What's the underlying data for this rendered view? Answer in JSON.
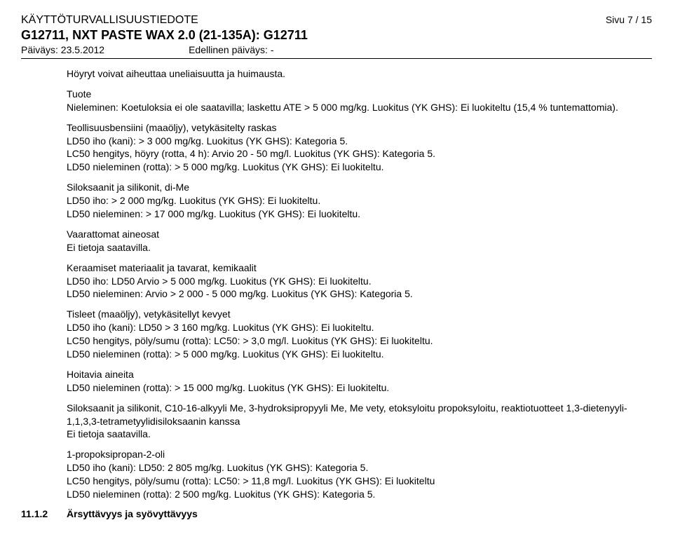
{
  "header": {
    "doc_type": "KÄYTTÖTURVALLISUUSTIEDOTE",
    "product_code": "G12711, NXT PASTE WAX 2.0 (21-135A): G12711",
    "date_label": "Päiväys: 23.5.2012",
    "prev_date_label": "Edellinen päiväys: -",
    "page_label": "Sivu 7 / 15"
  },
  "intro": {
    "line1": "Höyryt voivat aiheuttaa uneliaisuutta ja huimausta."
  },
  "tuote": {
    "title": "Tuote",
    "line1": "Nieleminen: Koetuloksia ei ole saatavilla; laskettu ATE > 5 000 mg/kg. Luokitus (YK GHS): Ei luokiteltu (15,4 % tuntemattomia)."
  },
  "teollisuus": {
    "title": "Teollisuusbensiini (maaöljy), vetykäsitelty raskas",
    "l1": "LD50 iho (kani): > 3 000 mg/kg. Luokitus (YK GHS): Kategoria 5.",
    "l2": "LC50 hengitys, höyry (rotta, 4 h): Arvio 20 - 50 mg/l. Luokitus (YK GHS): Kategoria 5.",
    "l3": "LD50 nieleminen (rotta): > 5 000 mg/kg. Luokitus (YK GHS): Ei luokiteltu."
  },
  "siloksaanit_dime": {
    "title": "Siloksaanit ja silikonit, di-Me",
    "l1": "LD50 iho: > 2 000 mg/kg. Luokitus (YK GHS): Ei luokiteltu.",
    "l2": "LD50 nieleminen: > 17 000 mg/kg. Luokitus (YK GHS): Ei luokiteltu."
  },
  "vaarattomat": {
    "title": "Vaarattomat aineosat",
    "l1": "Ei tietoja saatavilla."
  },
  "keraamiset": {
    "title": "Keraamiset materiaalit ja tavarat, kemikaalit",
    "l1": "LD50 iho: LD50 Arvio > 5 000 mg/kg. Luokitus (YK GHS): Ei luokiteltu.",
    "l2": "LD50 nieleminen: Arvio > 2 000 - 5 000 mg/kg. Luokitus (YK GHS): Kategoria 5."
  },
  "tisleet": {
    "title": "Tisleet (maaöljy), vetykäsitellyt kevyet",
    "l1": "LD50 iho (kani): LD50 > 3 160 mg/kg. Luokitus (YK GHS): Ei luokiteltu.",
    "l2": "LC50 hengitys, pöly/sumu (rotta): LC50: > 3,0 mg/l. Luokitus (YK GHS): Ei luokiteltu.",
    "l3": "LD50 nieleminen (rotta): > 5 000 mg/kg. Luokitus (YK GHS): Ei luokiteltu."
  },
  "hoitivia": {
    "title": "Hoitavia aineita",
    "l1": "LD50 nieleminen (rotta): > 15 000 mg/kg. Luokitus (YK GHS): Ei luokiteltu."
  },
  "siloksaanit_c10": {
    "title": "Siloksaanit ja silikonit, C10-16-alkyyli Me, 3-hydroksipropyyli Me, Me vety, etoksyloitu propoksyloitu, reaktiotuotteet 1,3-dietenyyli-1,1,3,3-tetrametyylidisiloksaanin kanssa",
    "l1": "Ei tietoja saatavilla."
  },
  "propoksipropan": {
    "title": "1-propoksipropan-2-oli",
    "l1": "LD50 iho (kani): LD50: 2 805 mg/kg. Luokitus (YK GHS): Kategoria 5.",
    "l2": "LC50 hengitys, pöly/sumu (rotta): LC50: > 11,8 mg/l. Luokitus (YK GHS): Ei luokiteltu",
    "l3": "LD50 nieleminen (rotta): 2 500 mg/kg. Luokitus (YK GHS): Kategoria 5."
  },
  "section": {
    "num": "11.1.2",
    "title": "Ärsyttävyys ja syövyttävyys"
  }
}
